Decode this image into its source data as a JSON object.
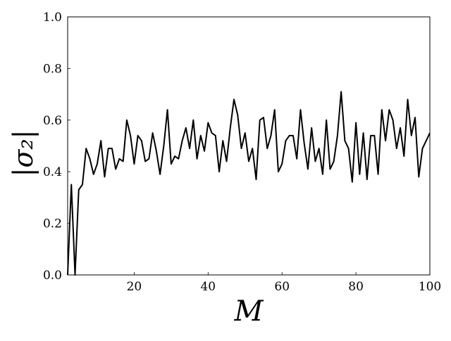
{
  "chart_data": {
    "type": "line",
    "title": "",
    "xlabel": "M",
    "ylabel": "|σ₂|",
    "xlim": [
      2,
      100
    ],
    "ylim": [
      0,
      1
    ],
    "xticks": [
      20,
      40,
      60,
      80,
      100
    ],
    "yticks": [
      0.0,
      0.2,
      0.4,
      0.6,
      0.8,
      1.0
    ],
    "xtick_labels": [
      "20",
      "40",
      "60",
      "80",
      "100"
    ],
    "ytick_labels": [
      "0.0",
      "0.2",
      "0.4",
      "0.6",
      "0.8",
      "1.0"
    ],
    "grid": false,
    "series": [
      {
        "color": "#000000",
        "x": [
          2,
          3,
          4,
          5,
          6,
          7,
          8,
          9,
          10,
          11,
          12,
          13,
          14,
          15,
          16,
          17,
          18,
          19,
          20,
          21,
          22,
          23,
          24,
          25,
          26,
          27,
          28,
          29,
          30,
          31,
          32,
          33,
          34,
          35,
          36,
          37,
          38,
          39,
          40,
          41,
          42,
          43,
          44,
          45,
          46,
          47,
          48,
          49,
          50,
          51,
          52,
          53,
          54,
          55,
          56,
          57,
          58,
          59,
          60,
          61,
          62,
          63,
          64,
          65,
          66,
          67,
          68,
          69,
          70,
          71,
          72,
          73,
          74,
          75,
          76,
          77,
          78,
          79,
          80,
          81,
          82,
          83,
          84,
          85,
          86,
          87,
          88,
          89,
          90,
          91,
          92,
          93,
          94,
          95,
          96,
          97,
          98,
          99,
          100
        ],
        "y": [
          0.0,
          0.35,
          0.0,
          0.33,
          0.35,
          0.49,
          0.45,
          0.39,
          0.43,
          0.52,
          0.38,
          0.49,
          0.49,
          0.41,
          0.45,
          0.44,
          0.6,
          0.54,
          0.43,
          0.54,
          0.52,
          0.44,
          0.45,
          0.55,
          0.48,
          0.39,
          0.5,
          0.64,
          0.43,
          0.46,
          0.45,
          0.52,
          0.57,
          0.49,
          0.6,
          0.45,
          0.54,
          0.48,
          0.59,
          0.55,
          0.54,
          0.4,
          0.52,
          0.44,
          0.57,
          0.68,
          0.62,
          0.49,
          0.55,
          0.44,
          0.49,
          0.37,
          0.6,
          0.61,
          0.49,
          0.54,
          0.64,
          0.4,
          0.43,
          0.52,
          0.54,
          0.54,
          0.45,
          0.64,
          0.51,
          0.41,
          0.57,
          0.44,
          0.49,
          0.39,
          0.6,
          0.41,
          0.44,
          0.54,
          0.71,
          0.52,
          0.49,
          0.36,
          0.59,
          0.39,
          0.55,
          0.37,
          0.54,
          0.54,
          0.39,
          0.64,
          0.52,
          0.64,
          0.6,
          0.49,
          0.57,
          0.46,
          0.68,
          0.54,
          0.61,
          0.38,
          0.49,
          0.52,
          0.55
        ]
      }
    ]
  }
}
